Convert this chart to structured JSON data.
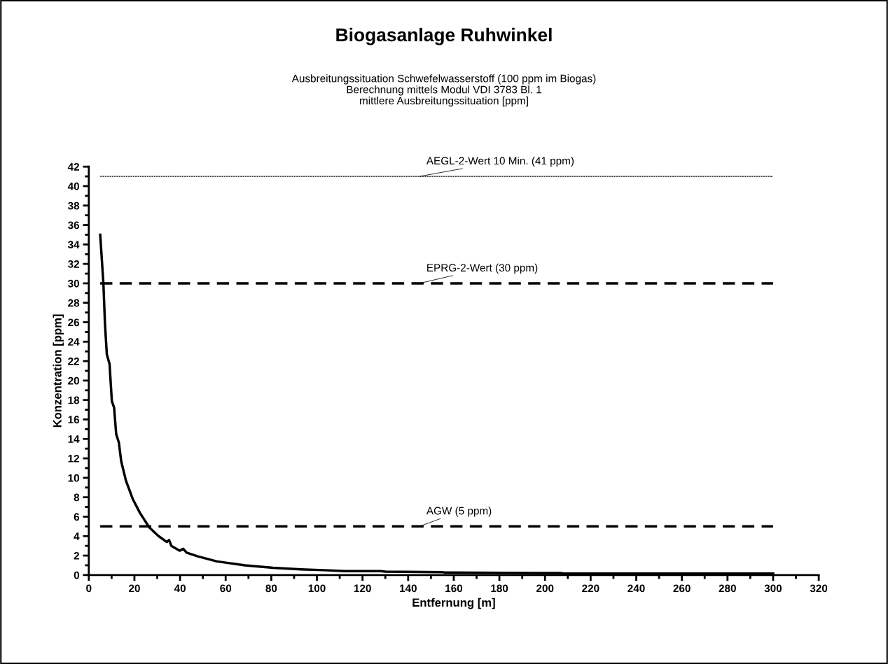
{
  "chart_data": {
    "type": "line",
    "title": "Biogasanlage Ruhwinkel",
    "subtitle": "Ausbreitungssituation Schwefelwasserstoff (100 ppm im Biogas)\nBerechnung mittels Modul VDI 3783 Bl. 1\nmittlere Ausbreitungssituation [ppm]",
    "xlabel": "Entfernung [m]",
    "ylabel": "Konzentration [ppm]",
    "series": [
      {
        "color": "#000000",
        "line_style": "solid",
        "x": [
          5.0,
          6.4,
          7.1,
          7.9,
          9.1,
          10.1,
          11.1,
          12.0,
          13.2,
          14.2,
          16.3,
          19.3,
          22.4,
          26.5,
          30.6,
          34.2,
          35.2,
          36.2,
          39.8,
          41.4,
          42.9,
          48.0,
          56.2,
          68.5,
          80.8,
          93.0,
          103.0,
          112.4,
          128.0,
          130.0,
          155.0,
          156.0,
          207.0,
          208.0,
          300.0
        ],
        "values": [
          35.0,
          30.0,
          25.8,
          22.7,
          21.7,
          17.9,
          17.2,
          14.5,
          13.6,
          11.7,
          9.7,
          7.8,
          6.4,
          4.9,
          4.0,
          3.4,
          3.6,
          3.0,
          2.5,
          2.7,
          2.3,
          1.9,
          1.4,
          1.0,
          0.74,
          0.58,
          0.5,
          0.4,
          0.4,
          0.35,
          0.3,
          0.25,
          0.2,
          0.15,
          0.15
        ]
      }
    ],
    "xlim": [
      0,
      320
    ],
    "xticks": [
      0,
      20,
      40,
      60,
      80,
      100,
      120,
      140,
      160,
      180,
      200,
      220,
      240,
      260,
      280,
      300,
      320
    ],
    "ylim": [
      0,
      42
    ],
    "yticks": [
      0,
      2,
      4,
      6,
      8,
      10,
      12,
      14,
      16,
      18,
      20,
      22,
      24,
      26,
      28,
      30,
      32,
      34,
      36,
      38,
      40,
      42
    ],
    "ref_lines": [
      {
        "axis": "y",
        "value": 41,
        "label": "AEGL-2-Wert 10 Min. (41 ppm)",
        "line_style": "dotted"
      },
      {
        "axis": "y",
        "value": 30,
        "label": "EPRG-2-Wert (30 ppm)",
        "line_style": "dashed"
      },
      {
        "axis": "y",
        "value": 5,
        "label": "AGW (5 ppm)",
        "line_style": "dashed"
      }
    ],
    "grid": false,
    "legend": false,
    "marker": "none"
  }
}
